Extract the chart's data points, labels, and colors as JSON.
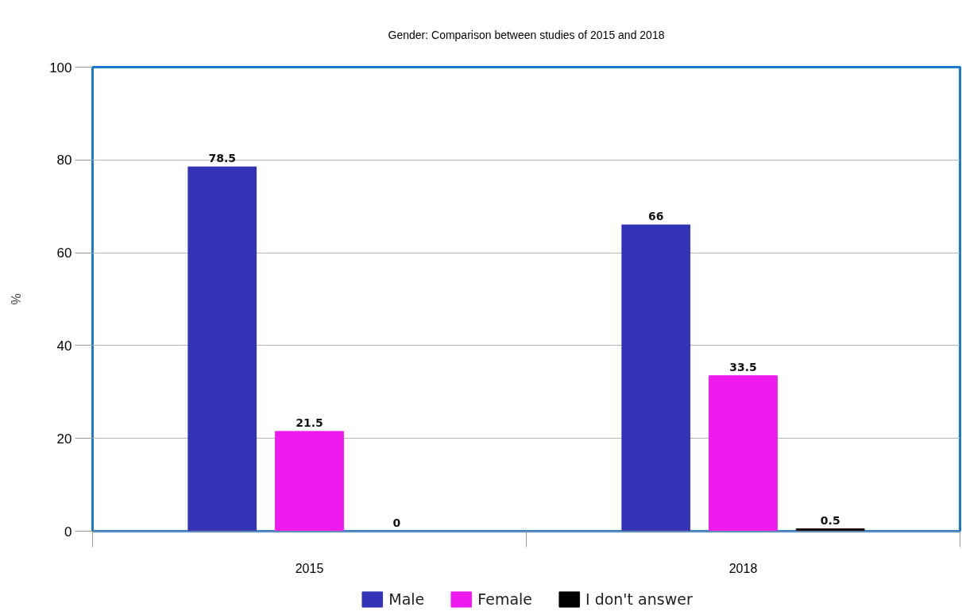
{
  "chart_data": {
    "type": "bar",
    "title": "Gender: Comparison between studies of 2015 and 2018",
    "ylabel": "%",
    "categories": [
      "2015",
      "2018"
    ],
    "series": [
      {
        "name": "Male",
        "color": "#3333b8",
        "values": [
          78.5,
          66
        ]
      },
      {
        "name": "Female",
        "color": "#ee1aee",
        "values": [
          21.5,
          33.5
        ]
      },
      {
        "name": "I don't answer",
        "color": "#000000",
        "values": [
          0,
          0.5
        ]
      }
    ],
    "ylim": [
      0,
      100
    ],
    "yticks": [
      0,
      20,
      40,
      60,
      80,
      100
    ],
    "grid": "y",
    "legend": "bottom",
    "data_labels": true
  }
}
